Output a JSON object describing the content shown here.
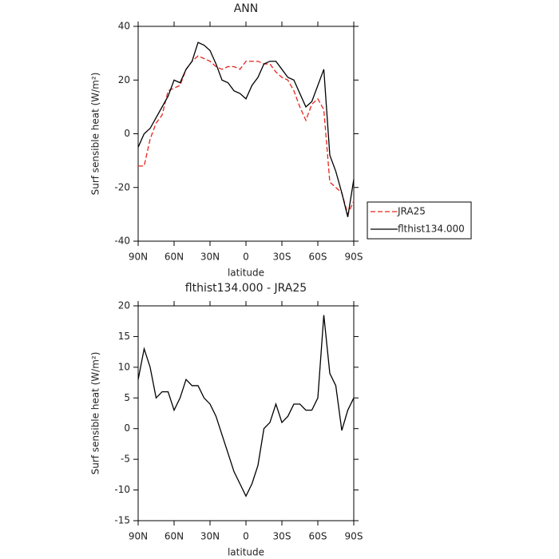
{
  "chart_data": [
    {
      "type": "line",
      "title": "ANN",
      "xlabel": "latitude",
      "ylabel": "Surf sensible heat (W/m²)",
      "x": [
        90,
        85,
        80,
        75,
        70,
        65,
        60,
        55,
        50,
        45,
        40,
        35,
        30,
        25,
        20,
        15,
        10,
        5,
        0,
        -5,
        -10,
        -15,
        -20,
        -25,
        -30,
        -35,
        -40,
        -45,
        -50,
        -55,
        -60,
        -65,
        -70,
        -75,
        -80,
        -85,
        -90
      ],
      "xlim": [
        90,
        -90
      ],
      "xticks": [
        {
          "value": 90,
          "label": "90N"
        },
        {
          "value": 60,
          "label": "60N"
        },
        {
          "value": 30,
          "label": "30N"
        },
        0,
        {
          "value": -30,
          "label": "30S"
        },
        {
          "value": -60,
          "label": "60S"
        },
        {
          "value": -90,
          "label": "90S"
        }
      ],
      "ylim": [
        -40,
        40
      ],
      "yticks": [
        -40,
        -20,
        0,
        20,
        40
      ],
      "legend": "right",
      "series": [
        {
          "name": "JRA25",
          "color": "#e8241c",
          "dash": true,
          "values": [
            -12,
            -12,
            -2,
            4,
            7,
            16,
            17,
            18,
            24,
            27,
            29,
            28,
            27,
            25,
            24,
            25,
            25,
            24,
            27,
            27,
            27,
            26,
            26,
            23,
            21,
            20,
            16,
            10,
            5,
            11,
            13,
            9,
            -18,
            -20,
            -22,
            -30,
            -25
          ]
        },
        {
          "name": "flthist134.000",
          "color": "#000000",
          "dash": false,
          "values": [
            -5,
            0,
            2,
            6,
            10,
            14,
            20,
            19,
            24,
            27,
            34,
            33,
            31,
            26,
            20,
            19,
            16,
            15,
            13,
            18,
            21,
            26,
            27,
            27,
            24,
            21,
            20,
            15,
            10,
            12,
            18,
            24,
            -8,
            -14,
            -22,
            -31,
            -17
          ]
        }
      ]
    },
    {
      "type": "line",
      "title": "flthist134.000 - JRA25",
      "xlabel": "latitude",
      "ylabel": "Surf sensible heat (W/m²)",
      "x": [
        90,
        85,
        80,
        75,
        70,
        65,
        60,
        55,
        50,
        45,
        40,
        35,
        30,
        25,
        20,
        15,
        10,
        5,
        0,
        -5,
        -10,
        -15,
        -20,
        -25,
        -30,
        -35,
        -40,
        -45,
        -50,
        -55,
        -60,
        -65,
        -70,
        -75,
        -80,
        -85,
        -90
      ],
      "xlim": [
        90,
        -90
      ],
      "xticks": [
        {
          "value": 90,
          "label": "90N"
        },
        {
          "value": 60,
          "label": "60N"
        },
        {
          "value": 30,
          "label": "30N"
        },
        0,
        {
          "value": -30,
          "label": "30S"
        },
        {
          "value": -60,
          "label": "60S"
        },
        {
          "value": -90,
          "label": "90S"
        }
      ],
      "ylim": [
        -15,
        20
      ],
      "yticks": [
        -15,
        -10,
        -5,
        0,
        5,
        10,
        15,
        20
      ],
      "series": [
        {
          "color": "#000000",
          "dash": false,
          "values": [
            8,
            13,
            10,
            5,
            6,
            6,
            3,
            5,
            8,
            7,
            7,
            5,
            4,
            2,
            -1,
            -4,
            -7,
            -9,
            -11,
            -9,
            -6,
            0,
            1,
            4,
            1,
            2,
            4,
            4,
            3,
            3,
            5,
            18.5,
            9,
            7,
            -0.3,
            3,
            5
          ]
        }
      ]
    }
  ]
}
